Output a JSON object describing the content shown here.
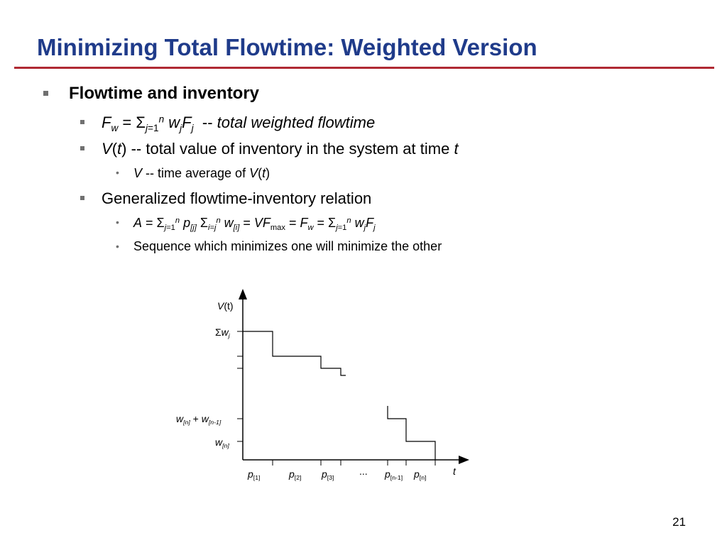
{
  "slide": {
    "title": "Minimizing Total Flowtime: Weighted Version",
    "page_number": "21",
    "accent_color": "#b02a33",
    "title_color": "#1f3b8a"
  },
  "bullets": {
    "b1": {
      "text": "Flowtime and inventory"
    },
    "b2": {
      "F": "F",
      "F_sub": "w",
      "eq": " = ",
      "sum": "Σ",
      "sum_sub": "j",
      "sum_sub_eq": "=1",
      "sum_sup": "n",
      "w": " w",
      "w_sub": "j",
      "F2": "F",
      "F2_sub": "j",
      "dash": "  -- ",
      "desc": "total weighted flowtime"
    },
    "b3": {
      "V": "V",
      "paren_open": "(",
      "t": "t",
      "paren_close": ")",
      "text": " -- total value of inventory in the system at time ",
      "t_end": "t"
    },
    "b3a": {
      "V": "V",
      "text": " -- time average of ",
      "V2": "V",
      "paren_open": "(",
      "t": "t",
      "paren_close": ")"
    },
    "b4": {
      "text": "Generalized flowtime-inventory relation"
    },
    "b4a": {
      "A": "A",
      "eq1": " = ",
      "sum1": "Σ",
      "sum1_sub": "j",
      "sum1_sub_eq": "=1",
      "sum1_sup": "n",
      "p": " p",
      "p_sub": "[j]",
      "sum2": " Σ",
      "sum2_sub": "i=j",
      "sum2_sup": "n",
      "w": " w",
      "w_sub": "[i]",
      "eq2": " = ",
      "VF": "VF",
      "VF_sub": "max",
      "eq3": " = ",
      "F": "F",
      "F_sub": "w",
      "eq4": " = ",
      "sum3": "Σ",
      "sum3_sub": "j",
      "sum3_sub_eq": "=1",
      "sum3_sup": "n",
      "w2": " w",
      "w2_sub": "j",
      "F2": "F",
      "F2_sub": "j"
    },
    "b4b": {
      "text": "Sequence which minimizes one will minimize the other"
    }
  },
  "chart_data": {
    "type": "line",
    "step": true,
    "y_axis_label": {
      "name": "V",
      "paren": "(t)"
    },
    "x_axis_label": "t",
    "y_labels": {
      "top": {
        "sigma": "Σ",
        "w": "w",
        "sub": "j"
      },
      "wn_wn1": {
        "w1": "w",
        "s1": "[n]",
        "plus": " + ",
        "w2": "w",
        "s2": "[n-1]"
      },
      "wn": {
        "w": "w",
        "s": "[n]"
      }
    },
    "x_labels": [
      {
        "p": "p",
        "sub": "[1]"
      },
      {
        "p": "p",
        "sub": "[2]"
      },
      {
        "p": "p",
        "sub": "[3]"
      },
      {
        "p": "...",
        "sub": ""
      },
      {
        "p": "p",
        "sub": "[n-1]"
      },
      {
        "p": "p",
        "sub": "[n]"
      }
    ]
  }
}
